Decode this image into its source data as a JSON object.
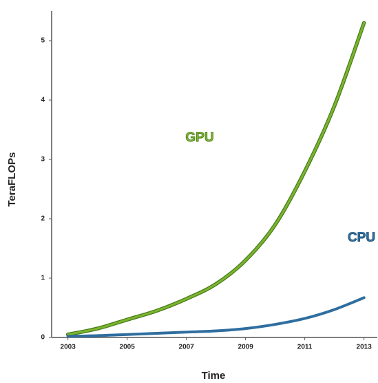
{
  "chart_data": {
    "type": "line",
    "xlabel": "Time",
    "ylabel": "TeraFLOPs",
    "x": [
      2003,
      2004,
      2005,
      2006,
      2007,
      2008,
      2009,
      2010,
      2011,
      2012,
      2013
    ],
    "series": [
      {
        "name": "GPU",
        "color": "#7ab52f",
        "values": [
          0.05,
          0.15,
          0.3,
          0.45,
          0.65,
          0.9,
          1.3,
          1.9,
          2.8,
          3.9,
          5.3
        ]
      },
      {
        "name": "CPU",
        "color": "#2f6e9f",
        "values": [
          0.02,
          0.03,
          0.05,
          0.07,
          0.09,
          0.11,
          0.15,
          0.22,
          0.32,
          0.47,
          0.67
        ]
      }
    ],
    "xlim": [
      2002.45,
      2013.45
    ],
    "xticks": [
      2003,
      2005,
      2007,
      2009,
      2011,
      2013
    ],
    "ylim": [
      0,
      5.5
    ],
    "yticks": [
      0,
      1,
      2,
      3,
      4,
      5
    ]
  }
}
